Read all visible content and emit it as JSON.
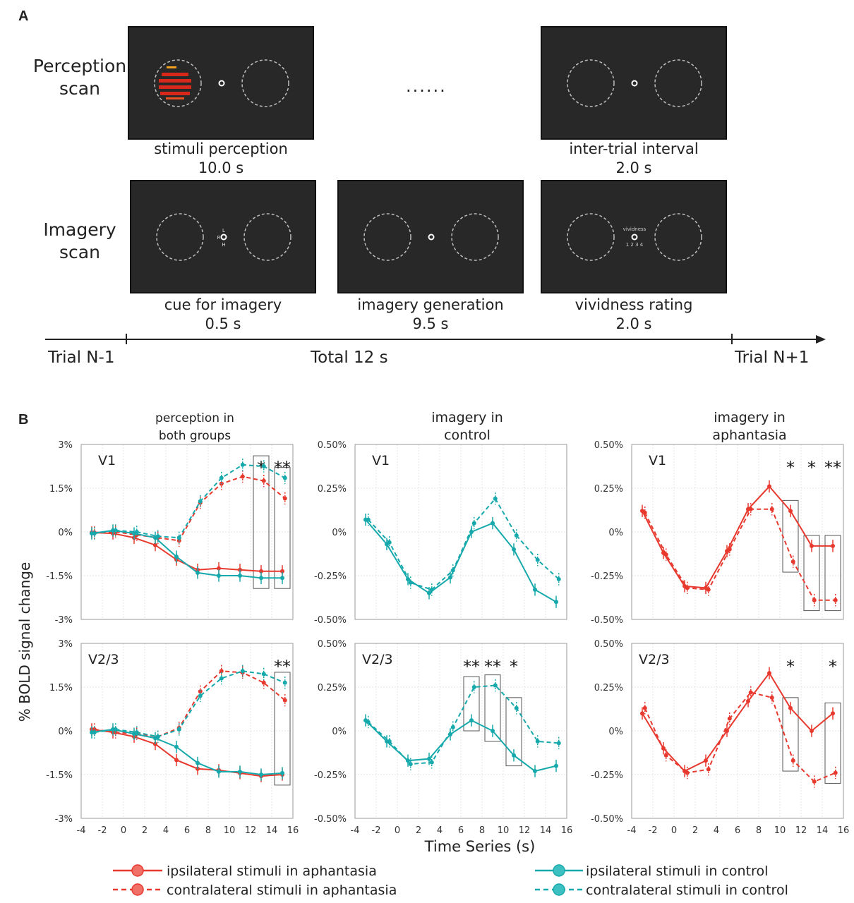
{
  "panel_a": {
    "letter": "A",
    "perception_label": [
      "Perception",
      "scan"
    ],
    "imagery_label": [
      "Imagery",
      "scan"
    ],
    "ellipsis": "......",
    "screens": {
      "stimuli_perception": {
        "caption": "stimuli perception",
        "duration": "10.0 s"
      },
      "inter_trial": {
        "caption": "inter-trial interval",
        "duration": "2.0 s"
      },
      "cue": {
        "caption": "cue for imagery",
        "duration": "0.5 s",
        "cue_letters": [
          "L",
          "R",
          "H"
        ]
      },
      "generation": {
        "caption": "imagery generation",
        "duration": "9.5 s"
      },
      "vividness": {
        "caption": "vividness rating",
        "duration": "2.0 s",
        "prompt": "vividness",
        "scale": "1 2 3 4"
      }
    },
    "timeline": {
      "left": "Trial N-1",
      "center": "Total 12 s",
      "right": "Trial N+1"
    },
    "colors": {
      "screen": "#282828",
      "stimulus": "#d8281c",
      "stimulus_edge": "#f0a020"
    }
  },
  "panel_b": {
    "letter": "B",
    "ylabel": "% BOLD signal change",
    "xlabel": "Time Series (s)",
    "column_titles": [
      [
        "perception in",
        "both groups"
      ],
      [
        "imagery in",
        "control"
      ],
      [
        "imagery in",
        "aphantasia"
      ]
    ],
    "legend": [
      {
        "label": "ipsilateral stimuli in aphantasia",
        "color": "#e8392f",
        "style": "solid"
      },
      {
        "label": "contralateral stimuli in aphantasia",
        "color": "#e8392f",
        "style": "dashed"
      },
      {
        "label": "ipsilateral stimuli in control",
        "color": "#16a9ab",
        "style": "solid"
      },
      {
        "label": "contralateral stimuli in control",
        "color": "#16a9ab",
        "style": "dashed"
      }
    ]
  },
  "chart_data": [
    {
      "type": "line",
      "region": "V1",
      "title": "perception in both groups",
      "x": [
        -3,
        -1,
        1,
        3,
        5,
        7,
        9,
        11,
        13,
        15
      ],
      "xlim": [
        -4,
        16
      ],
      "xticks": [
        "-4",
        "-2",
        "0",
        "2",
        "4",
        "6",
        "8",
        "10",
        "12",
        "14",
        "16"
      ],
      "ylim": [
        -3,
        3
      ],
      "yticks": [
        "3%",
        "1.5%",
        "0%",
        "-1.5%",
        "-3%"
      ],
      "ytick_values": [
        3,
        1.5,
        0,
        -1.5,
        -3
      ],
      "grid": true,
      "series": [
        {
          "name": "ipsilateral stimuli in aphantasia",
          "color": "#e8392f",
          "dash": false,
          "x": [
            -3,
            -1,
            1,
            3,
            5,
            7,
            9,
            11,
            13,
            15
          ],
          "values": [
            -0.02,
            -0.05,
            -0.2,
            -0.45,
            -0.95,
            -1.3,
            -1.25,
            -1.3,
            -1.35,
            -1.35
          ]
        },
        {
          "name": "contralateral stimuli in aphantasia",
          "color": "#e8392f",
          "dash": true,
          "x": [
            -3,
            -1,
            1,
            3,
            5,
            7,
            9,
            11,
            13,
            15
          ],
          "values": [
            -0.02,
            0.0,
            -0.1,
            -0.2,
            -0.3,
            1.0,
            1.65,
            1.9,
            1.75,
            1.15
          ]
        },
        {
          "name": "ipsilateral stimuli in control",
          "color": "#16a9ab",
          "dash": false,
          "x": [
            -3,
            -1,
            1,
            3,
            5,
            7,
            9,
            11,
            13,
            15
          ],
          "values": [
            -0.05,
            0.05,
            -0.05,
            -0.2,
            -0.85,
            -1.4,
            -1.5,
            -1.5,
            -1.58,
            -1.58
          ]
        },
        {
          "name": "contralateral stimuli in control",
          "color": "#16a9ab",
          "dash": true,
          "x": [
            -3,
            -1,
            1,
            3,
            5,
            7,
            9,
            11,
            13,
            15
          ],
          "values": [
            -0.05,
            0.05,
            0.0,
            -0.15,
            -0.2,
            1.05,
            1.85,
            2.3,
            2.25,
            1.85
          ]
        }
      ],
      "significance": [
        {
          "x": 13,
          "label": "*"
        },
        {
          "x": 15,
          "label": "**"
        }
      ]
    },
    {
      "type": "line",
      "region": "V1",
      "title": "imagery in control",
      "x": [
        -3,
        -1,
        1,
        3,
        5,
        7,
        9,
        11,
        13,
        15
      ],
      "xlim": [
        -4,
        16
      ],
      "xticks": [
        "-4",
        "-2",
        "0",
        "2",
        "4",
        "6",
        "8",
        "10",
        "12",
        "14",
        "16"
      ],
      "ylim": [
        -0.5,
        0.5
      ],
      "yticks": [
        "0.50%",
        "0.25%",
        "0%",
        "-0.25%",
        "-0.50%"
      ],
      "ytick_values": [
        0.5,
        0.25,
        0,
        -0.25,
        -0.5
      ],
      "grid": true,
      "series": [
        {
          "name": "ipsilateral stimuli in control",
          "color": "#16a9ab",
          "dash": false,
          "x": [
            -3,
            -1,
            1,
            3,
            5,
            7,
            9,
            11,
            13,
            15
          ],
          "values": [
            0.07,
            -0.07,
            -0.27,
            -0.35,
            -0.26,
            0.0,
            0.05,
            -0.1,
            -0.33,
            -0.4
          ]
        },
        {
          "name": "contralateral stimuli in control",
          "color": "#16a9ab",
          "dash": true,
          "x": [
            -3,
            -1,
            1,
            3,
            5,
            7,
            9,
            11,
            13,
            15
          ],
          "values": [
            0.07,
            -0.06,
            -0.29,
            -0.33,
            -0.22,
            0.05,
            0.19,
            -0.02,
            -0.16,
            -0.27
          ]
        }
      ],
      "significance": []
    },
    {
      "type": "line",
      "region": "V1",
      "title": "imagery in aphantasia",
      "x": [
        -3,
        -1,
        1,
        3,
        5,
        7,
        9,
        11,
        13,
        15
      ],
      "xlim": [
        -4,
        16
      ],
      "xticks": [
        "-4",
        "-2",
        "0",
        "2",
        "4",
        "6",
        "8",
        "10",
        "12",
        "14",
        "16"
      ],
      "ylim": [
        -0.5,
        0.5
      ],
      "yticks": [
        "0.50%",
        "0.25%",
        "0%",
        "-0.25%",
        "-0.50%"
      ],
      "ytick_values": [
        0.5,
        0.25,
        0,
        -0.25,
        -0.5
      ],
      "grid": true,
      "series": [
        {
          "name": "ipsilateral stimuli in aphantasia",
          "color": "#e8392f",
          "dash": false,
          "x": [
            -3,
            -1,
            1,
            3,
            5,
            7,
            9,
            11,
            13,
            15
          ],
          "values": [
            0.12,
            -0.12,
            -0.31,
            -0.32,
            -0.11,
            0.13,
            0.26,
            0.12,
            -0.08,
            -0.08
          ]
        },
        {
          "name": "contralateral stimuli in aphantasia",
          "color": "#e8392f",
          "dash": true,
          "x": [
            -3,
            -1,
            1,
            3,
            5,
            7,
            9,
            11,
            13,
            15
          ],
          "values": [
            0.11,
            -0.13,
            -0.32,
            -0.33,
            -0.1,
            0.13,
            0.13,
            -0.17,
            -0.39,
            -0.39
          ]
        }
      ],
      "significance": [
        {
          "x": 11,
          "label": "*"
        },
        {
          "x": 13,
          "label": "*"
        },
        {
          "x": 15,
          "label": "**"
        }
      ]
    },
    {
      "type": "line",
      "region": "V2/3",
      "title": "perception in both groups",
      "x": [
        -3,
        -1,
        1,
        3,
        5,
        7,
        9,
        11,
        13,
        15
      ],
      "xlim": [
        -4,
        16
      ],
      "xticks": [
        "-4",
        "-2",
        "0",
        "2",
        "4",
        "6",
        "8",
        "10",
        "12",
        "14",
        "16"
      ],
      "ylim": [
        -3,
        3
      ],
      "yticks": [
        "3%",
        "1.5%",
        "0%",
        "-1.5%",
        "-3%"
      ],
      "ytick_values": [
        3,
        1.5,
        0,
        -1.5,
        -3
      ],
      "grid": true,
      "series": [
        {
          "name": "ipsilateral stimuli in aphantasia",
          "color": "#e8392f",
          "dash": false,
          "x": [
            -3,
            -1,
            1,
            3,
            5,
            7,
            9,
            11,
            13,
            15
          ],
          "values": [
            0.05,
            -0.05,
            -0.2,
            -0.45,
            -1.0,
            -1.3,
            -1.35,
            -1.45,
            -1.55,
            -1.5
          ]
        },
        {
          "name": "contralateral stimuli in aphantasia",
          "color": "#e8392f",
          "dash": true,
          "x": [
            -3,
            -1,
            1,
            3,
            5,
            7,
            9,
            11,
            13,
            15
          ],
          "values": [
            0.05,
            -0.05,
            -0.1,
            -0.2,
            0.1,
            1.35,
            2.05,
            2.0,
            1.65,
            1.05
          ]
        },
        {
          "name": "ipsilateral stimuli in control",
          "color": "#16a9ab",
          "dash": false,
          "x": [
            -3,
            -1,
            1,
            3,
            5,
            7,
            9,
            11,
            13,
            15
          ],
          "values": [
            -0.05,
            0.05,
            -0.1,
            -0.25,
            -0.55,
            -1.1,
            -1.4,
            -1.4,
            -1.5,
            -1.45
          ]
        },
        {
          "name": "contralateral stimuli in control",
          "color": "#16a9ab",
          "dash": true,
          "x": [
            -3,
            -1,
            1,
            3,
            5,
            7,
            9,
            11,
            13,
            15
          ],
          "values": [
            -0.05,
            0.05,
            -0.05,
            -0.2,
            0.05,
            1.2,
            1.8,
            2.05,
            1.95,
            1.65
          ]
        }
      ],
      "significance": [
        {
          "x": 15,
          "label": "**"
        }
      ]
    },
    {
      "type": "line",
      "region": "V2/3",
      "title": "imagery in control",
      "x": [
        -3,
        -1,
        1,
        3,
        5,
        7,
        9,
        11,
        13,
        15
      ],
      "xlim": [
        -4,
        16
      ],
      "xticks": [
        "-4",
        "-2",
        "0",
        "2",
        "4",
        "6",
        "8",
        "10",
        "12",
        "14",
        "16"
      ],
      "ylim": [
        -0.5,
        0.5
      ],
      "yticks": [
        "0.50%",
        "0.25%",
        "0%",
        "-0.25%",
        "-0.50%"
      ],
      "ytick_values": [
        0.5,
        0.25,
        0,
        -0.25,
        -0.5
      ],
      "grid": true,
      "series": [
        {
          "name": "ipsilateral stimuli in control",
          "color": "#16a9ab",
          "dash": false,
          "x": [
            -3,
            -1,
            1,
            3,
            5,
            7,
            9,
            11,
            13,
            15
          ],
          "values": [
            0.06,
            -0.06,
            -0.17,
            -0.16,
            -0.02,
            0.06,
            0.0,
            -0.14,
            -0.23,
            -0.2
          ]
        },
        {
          "name": "contralateral stimuli in control",
          "color": "#16a9ab",
          "dash": true,
          "x": [
            -3,
            -1,
            1,
            3,
            5,
            7,
            9,
            11,
            13,
            15
          ],
          "values": [
            0.05,
            -0.06,
            -0.19,
            -0.18,
            0.02,
            0.25,
            0.26,
            0.13,
            -0.06,
            -0.07
          ]
        }
      ],
      "significance": [
        {
          "x": 7,
          "label": "**"
        },
        {
          "x": 9,
          "label": "**"
        },
        {
          "x": 11,
          "label": "*"
        }
      ]
    },
    {
      "type": "line",
      "region": "V2/3",
      "title": "imagery in aphantasia",
      "x": [
        -3,
        -1,
        1,
        3,
        5,
        7,
        9,
        11,
        13,
        15
      ],
      "xlim": [
        -4,
        16
      ],
      "xticks": [
        "-4",
        "-2",
        "0",
        "2",
        "4",
        "6",
        "8",
        "10",
        "12",
        "14",
        "16"
      ],
      "ylim": [
        -0.5,
        0.5
      ],
      "yticks": [
        "0.50%",
        "0.25%",
        "0%",
        "-0.25%",
        "-0.50%"
      ],
      "ytick_values": [
        0.5,
        0.25,
        0,
        -0.25,
        -0.5
      ],
      "grid": true,
      "series": [
        {
          "name": "ipsilateral stimuli in aphantasia",
          "color": "#e8392f",
          "dash": false,
          "x": [
            -3,
            -1,
            1,
            3,
            5,
            7,
            9,
            11,
            13,
            15
          ],
          "values": [
            0.1,
            -0.1,
            -0.23,
            -0.17,
            0.0,
            0.17,
            0.33,
            0.13,
            0.0,
            0.1
          ]
        },
        {
          "name": "contralateral stimuli in aphantasia",
          "color": "#e8392f",
          "dash": true,
          "x": [
            -3,
            -1,
            1,
            3,
            5,
            7,
            9,
            11,
            13,
            15
          ],
          "values": [
            0.13,
            -0.14,
            -0.24,
            -0.22,
            0.07,
            0.22,
            0.19,
            -0.17,
            -0.29,
            -0.24
          ]
        }
      ],
      "significance": [
        {
          "x": 11,
          "label": "*"
        },
        {
          "x": 15,
          "label": "*"
        }
      ]
    }
  ]
}
